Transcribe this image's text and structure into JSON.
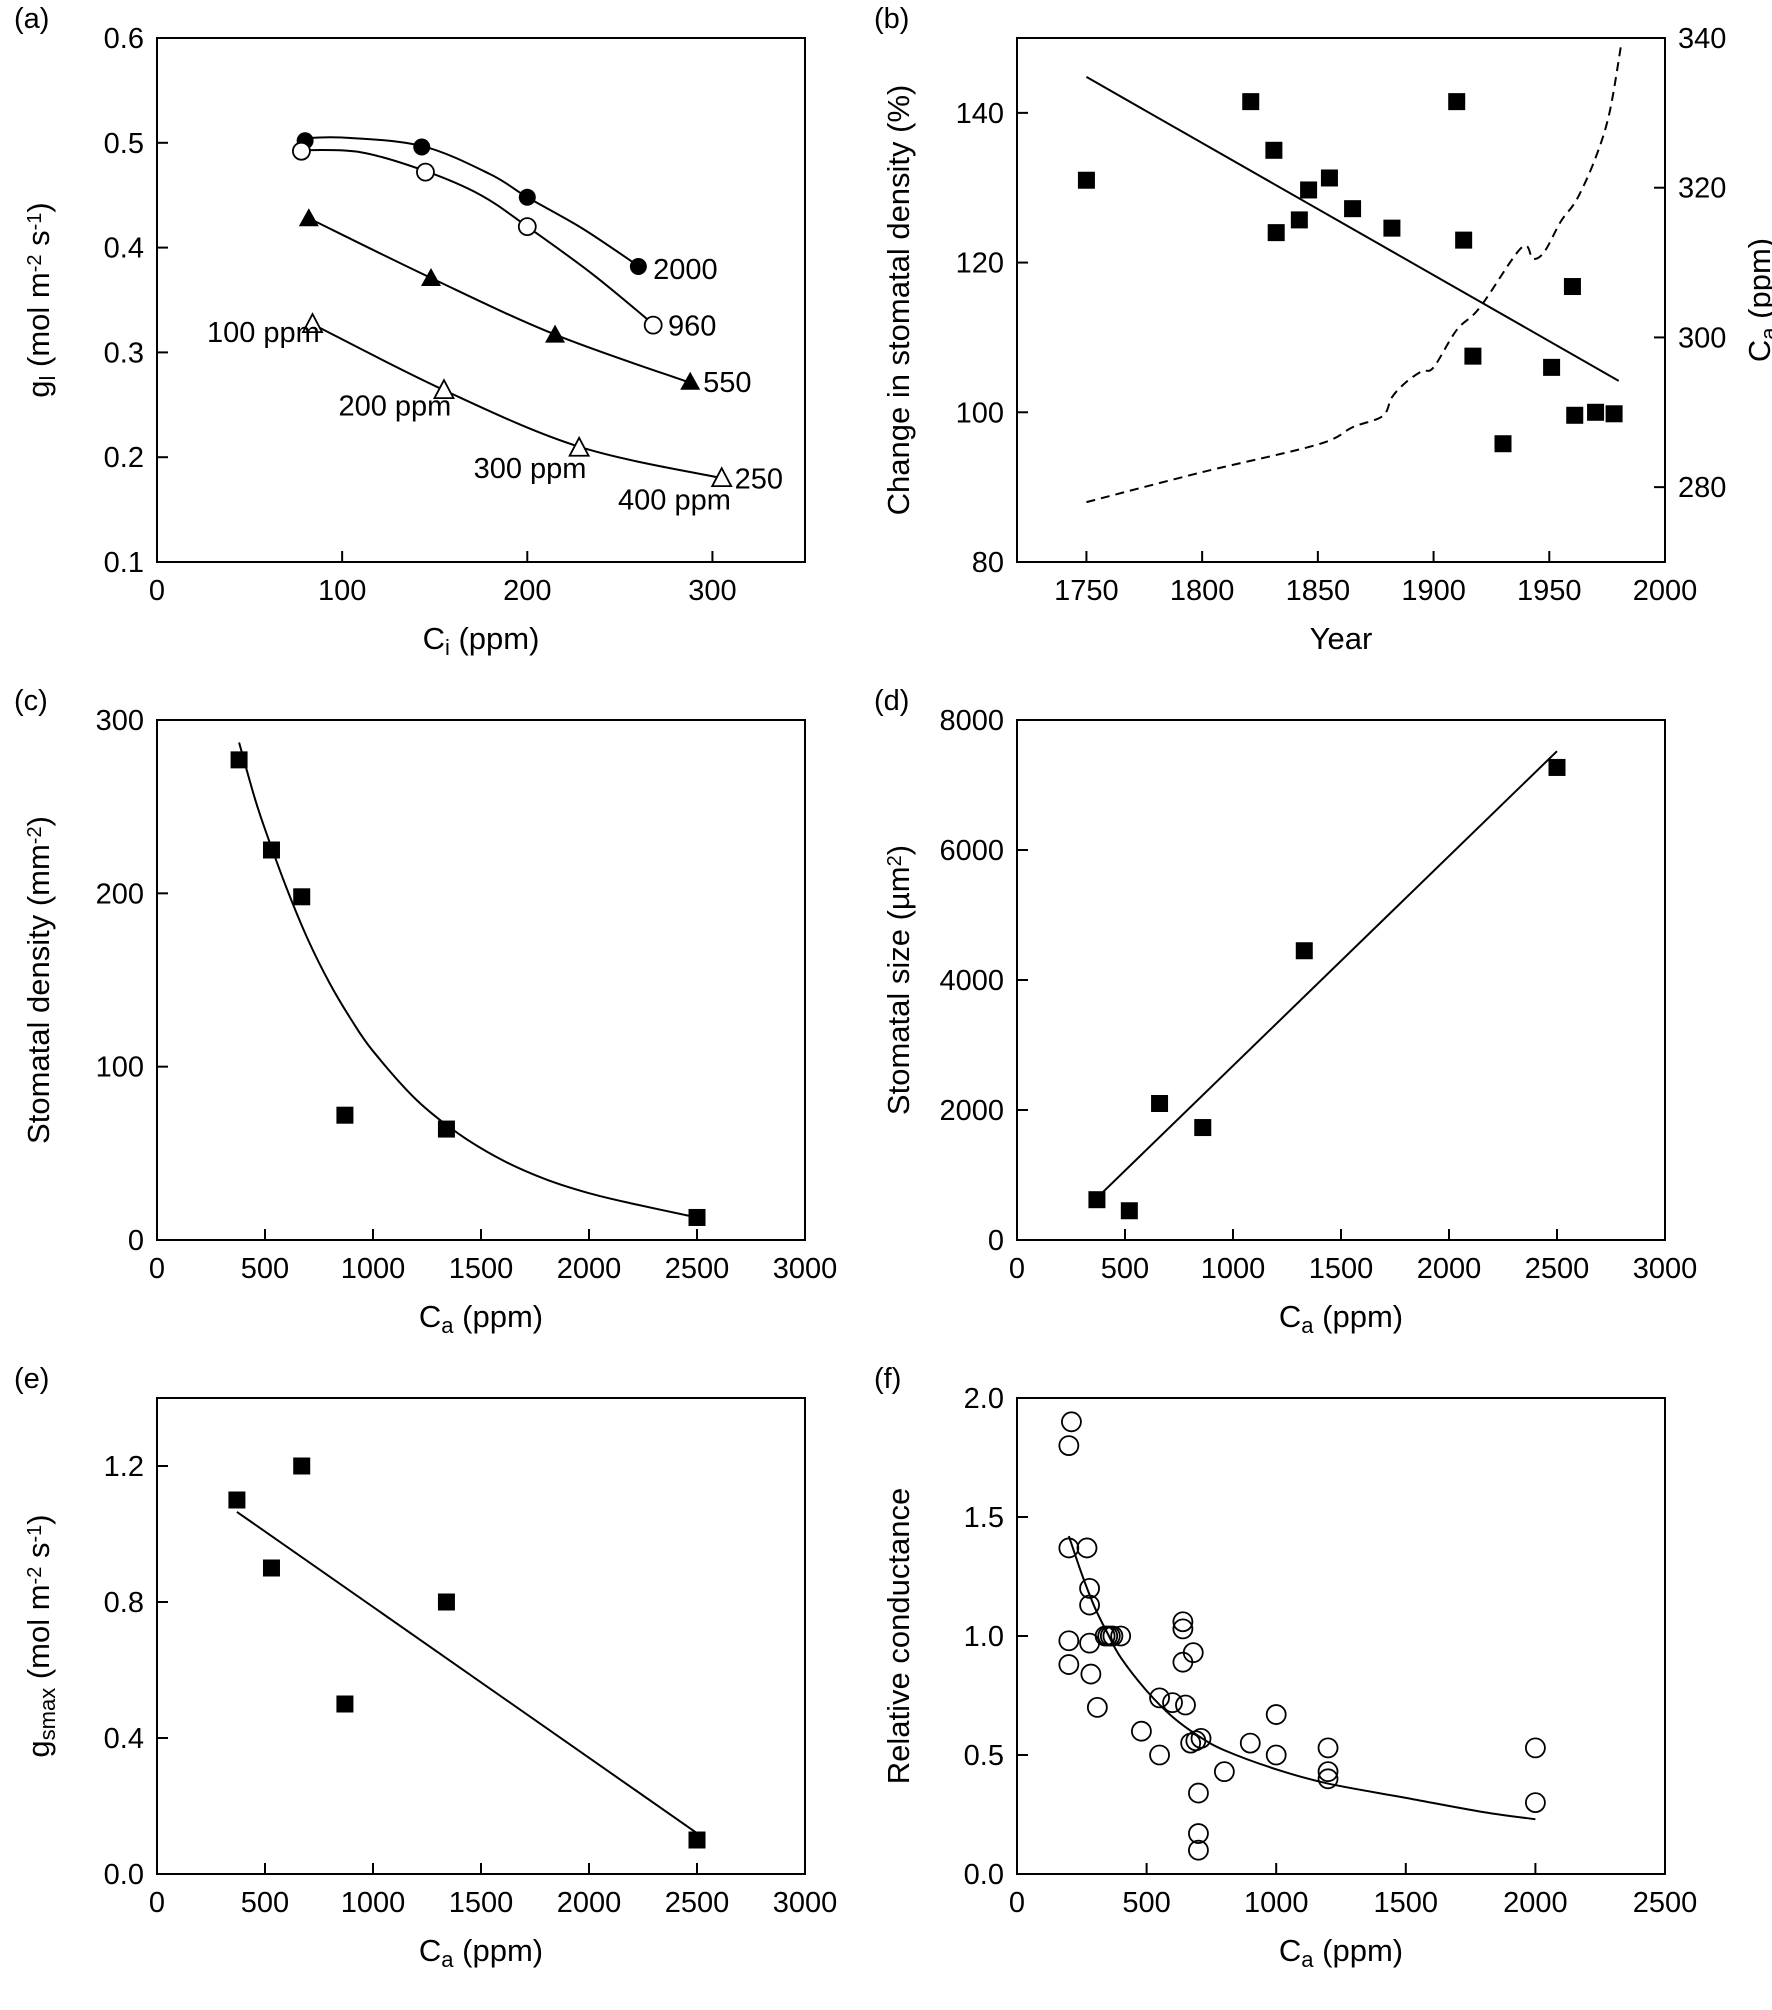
{
  "chart_data": [
    {
      "id": "a",
      "panel_label": "(a)",
      "type": "scatter",
      "xlabel": "C_i (ppm)",
      "ylabel": "g_l (mol m^-2 s^-1)",
      "xlim": [
        0,
        350
      ],
      "ylim": [
        0.1,
        0.6
      ],
      "xticks": [
        0,
        100,
        200,
        300
      ],
      "yticks": [
        0.1,
        0.2,
        0.3,
        0.4,
        0.5,
        0.6
      ],
      "series": [
        {
          "name": "2000",
          "marker": "circle-filled",
          "x": [
            80,
            143,
            200,
            260
          ],
          "y": [
            0.502,
            0.496,
            0.448,
            0.382
          ],
          "curve_x": [
            78,
            100,
            143,
            180,
            200,
            230,
            262
          ],
          "curve_y": [
            0.504,
            0.505,
            0.497,
            0.47,
            0.448,
            0.418,
            0.38
          ]
        },
        {
          "name": "960",
          "marker": "circle-open",
          "x": [
            78,
            145,
            200,
            268
          ],
          "y": [
            0.492,
            0.472,
            0.42,
            0.326
          ],
          "curve_x": [
            78,
            110,
            145,
            175,
            200,
            235,
            268
          ],
          "curve_y": [
            0.493,
            0.491,
            0.473,
            0.45,
            0.42,
            0.375,
            0.327
          ]
        },
        {
          "name": "550",
          "marker": "triangle-filled",
          "x": [
            82,
            148,
            215,
            288
          ],
          "y": [
            0.428,
            0.371,
            0.317,
            0.272
          ],
          "curve_x": [
            82,
            148,
            215,
            288
          ],
          "curve_y": [
            0.428,
            0.371,
            0.317,
            0.271
          ]
        },
        {
          "name": "250",
          "marker": "triangle-open",
          "x": [
            84,
            155,
            228,
            305
          ],
          "y": [
            0.327,
            0.264,
            0.209,
            0.18
          ],
          "curve_x": [
            84,
            155,
            228,
            305
          ],
          "curve_y": [
            0.327,
            0.264,
            0.21,
            0.18
          ]
        }
      ],
      "annotations": [
        {
          "text": "2000",
          "x": 268,
          "y": 0.37
        },
        {
          "text": "960",
          "x": 276,
          "y": 0.316
        },
        {
          "text": "550",
          "x": 295,
          "y": 0.262
        },
        {
          "text": "250",
          "x": 312,
          "y": 0.17
        },
        {
          "text": "100 ppm",
          "x": 27,
          "y": 0.31
        },
        {
          "text": "200 ppm",
          "x": 98,
          "y": 0.24
        },
        {
          "text": "300 ppm",
          "x": 171,
          "y": 0.18
        },
        {
          "text": "400 ppm",
          "x": 249,
          "y": 0.15
        }
      ]
    },
    {
      "id": "b",
      "panel_label": "(b)",
      "type": "scatter",
      "xlabel": "Year",
      "ylabel": "Change in stomatal density (%)",
      "y2label": "C_a (ppm)",
      "xlim": [
        1720,
        2000
      ],
      "ylim": [
        80,
        150
      ],
      "y2lim": [
        270,
        340
      ],
      "xticks": [
        1750,
        1800,
        1850,
        1900,
        1950,
        2000
      ],
      "yticks": [
        80,
        100,
        120,
        140
      ],
      "y2ticks": [
        280,
        300,
        320,
        340
      ],
      "points": {
        "x": [
          1750,
          1821,
          1831,
          1832,
          1842,
          1846,
          1855,
          1865,
          1882,
          1910,
          1913,
          1917,
          1930,
          1951,
          1960,
          1961,
          1970,
          1978
        ],
        "y": [
          131,
          141.5,
          135,
          124,
          125.7,
          129.7,
          131.3,
          127.2,
          124.6,
          141.5,
          123,
          107.5,
          95.8,
          106,
          116.8,
          99.6,
          100,
          99.8
        ]
      },
      "fit_line": {
        "x": [
          1750,
          1980
        ],
        "y": [
          144.8,
          104.2
        ]
      },
      "ca_curve": {
        "x": [
          1750,
          1800,
          1850,
          1865,
          1878,
          1882,
          1888,
          1895,
          1900,
          1910,
          1920,
          1938,
          1943,
          1948,
          1955,
          1962,
          1970,
          1976,
          1981
        ],
        "y": [
          278,
          282,
          285.7,
          288,
          289.5,
          292,
          294,
          295.5,
          296,
          301,
          304,
          312,
          310.5,
          311.5,
          315.5,
          318.5,
          324,
          330,
          339
        ]
      }
    },
    {
      "id": "c",
      "panel_label": "(c)",
      "type": "scatter",
      "xlabel": "C_a (ppm)",
      "ylabel": "Stomatal density (mm^-2)",
      "xlim": [
        0,
        3000
      ],
      "ylim": [
        0,
        300
      ],
      "xticks": [
        0,
        500,
        1000,
        1500,
        2000,
        2500,
        3000
      ],
      "yticks": [
        0,
        100,
        200,
        300
      ],
      "points": {
        "x": [
          380,
          530,
          670,
          870,
          1340,
          2500
        ],
        "y": [
          277,
          225,
          198,
          72,
          64,
          13
        ]
      },
      "fit_curve": {
        "x": [
          380,
          450,
          500,
          600,
          700,
          800,
          900,
          1000,
          1200,
          1400,
          1600,
          1800,
          2000,
          2200,
          2500
        ],
        "y": [
          287,
          256,
          237,
          203,
          173,
          148,
          127,
          109,
          81,
          61,
          46,
          35,
          27,
          21,
          13
        ]
      }
    },
    {
      "id": "d",
      "panel_label": "(d)",
      "type": "scatter",
      "xlabel": "C_a (ppm)",
      "ylabel": "Stomatal size (µm^2)",
      "xlim": [
        0,
        3000
      ],
      "ylim": [
        0,
        8000
      ],
      "xticks": [
        0,
        500,
        1000,
        1500,
        2000,
        2500,
        3000
      ],
      "yticks": [
        0,
        2000,
        4000,
        6000,
        8000
      ],
      "points": {
        "x": [
          370,
          520,
          660,
          860,
          1330,
          2500
        ],
        "y": [
          620,
          450,
          2100,
          1730,
          4450,
          7270
        ]
      },
      "fit_line": {
        "x": [
          380,
          2500
        ],
        "y": [
          680,
          7520
        ]
      }
    },
    {
      "id": "e",
      "panel_label": "(e)",
      "type": "scatter",
      "xlabel": "C_a (ppm)",
      "ylabel": "g_smax (mol m^-2 s^-1)",
      "xlim": [
        0,
        3000
      ],
      "ylim": [
        0,
        1.4
      ],
      "xticks": [
        0,
        500,
        1000,
        1500,
        2000,
        2500,
        3000
      ],
      "yticks": [
        0.0,
        0.4,
        0.8,
        1.2
      ],
      "points": {
        "x": [
          370,
          530,
          670,
          870,
          1340,
          2500
        ],
        "y": [
          1.1,
          0.9,
          1.2,
          0.5,
          0.8,
          0.1
        ]
      },
      "fit_line": {
        "x": [
          370,
          2500
        ],
        "y": [
          1.065,
          0.12
        ]
      }
    },
    {
      "id": "f",
      "panel_label": "(f)",
      "type": "scatter",
      "xlabel": "C_a (ppm)",
      "ylabel": "Relative conductance",
      "xlim": [
        0,
        2500
      ],
      "ylim": [
        0,
        2.0
      ],
      "xticks": [
        0,
        500,
        1000,
        1500,
        2000,
        2500
      ],
      "yticks": [
        0.0,
        0.5,
        1.0,
        1.5,
        2.0
      ],
      "points": {
        "x": [
          210,
          200,
          200,
          200,
          200,
          270,
          280,
          280,
          280,
          285,
          310,
          340,
          350,
          360,
          370,
          400,
          480,
          550,
          550,
          600,
          640,
          640,
          640,
          650,
          670,
          680,
          690,
          700,
          700,
          700,
          710,
          800,
          900,
          1000,
          1000,
          1200,
          1200,
          1200,
          2000,
          2000
        ],
        "y": [
          1.9,
          1.8,
          1.37,
          0.98,
          0.88,
          1.37,
          1.2,
          1.13,
          0.97,
          0.84,
          0.7,
          1.0,
          1.0,
          1.0,
          1.0,
          1.0,
          0.6,
          0.74,
          0.5,
          0.72,
          1.06,
          1.03,
          0.89,
          0.71,
          0.55,
          0.93,
          0.56,
          0.34,
          0.17,
          0.1,
          0.57,
          0.43,
          0.55,
          0.67,
          0.5,
          0.53,
          0.43,
          0.4,
          0.53,
          0.3
        ]
      },
      "fit_curve": {
        "x": [
          200,
          250,
          300,
          350,
          400,
          500,
          600,
          700,
          800,
          1000,
          1200,
          1500,
          1800,
          2000
        ],
        "y": [
          1.42,
          1.26,
          1.12,
          1.01,
          0.91,
          0.77,
          0.66,
          0.58,
          0.52,
          0.44,
          0.38,
          0.32,
          0.26,
          0.23
        ]
      }
    }
  ]
}
